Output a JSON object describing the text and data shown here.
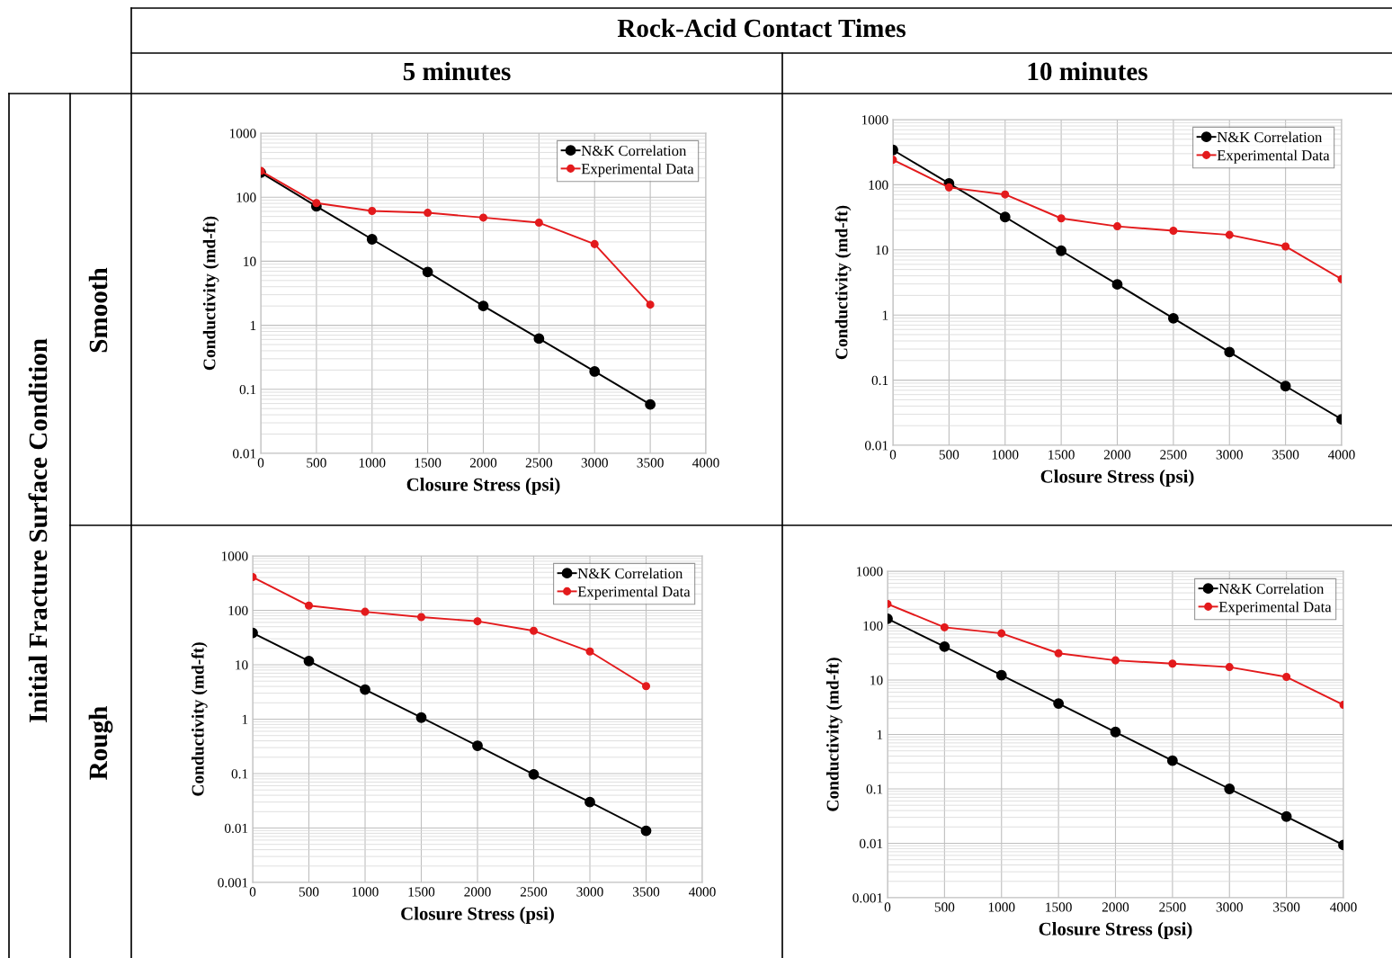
{
  "chart_data": [
    {
      "type": "line",
      "title": "5 minutes",
      "annotations": [
        "Rock-Acid Contact Times",
        "Initial Fracture Surface Condition",
        "Smooth"
      ],
      "xlabel": "Closure Stress (psi)",
      "ylabel": "Conductivity (md-ft)",
      "x": [
        0,
        500,
        1000,
        1500,
        2000,
        2500,
        3000,
        3500
      ],
      "series": [
        {
          "name": "N&K Correlation",
          "color": "#000000",
          "values": [
            242,
            72,
            22,
            6.8,
            2.0,
            0.62,
            0.19,
            0.058
          ]
        },
        {
          "name": "Experimental Data",
          "color": "#e31a1c",
          "values": [
            257,
            81,
            61,
            57,
            48,
            40,
            18.5,
            2.1
          ]
        }
      ],
      "xlim": [
        0,
        4000
      ],
      "ylim": [
        0.01,
        1000
      ],
      "xticks": [
        0,
        500,
        1000,
        1500,
        2000,
        2500,
        3000,
        3500,
        4000
      ],
      "yticks": [
        0.01,
        0.1,
        1,
        10,
        100,
        1000
      ],
      "log": "y",
      "grid": true,
      "legend": "top right",
      "marker": "circle"
    },
    {
      "type": "line",
      "title": "10 minutes",
      "xlabel": "Closure Stress (psi)",
      "ylabel": "Conductivity (md-ft)",
      "x": [
        0,
        500,
        1000,
        1500,
        2000,
        2500,
        3000,
        3500,
        4000
      ],
      "series": [
        {
          "name": "N&K Correlation",
          "color": "#000000",
          "values": [
            342,
            105,
            32,
            9.7,
            2.95,
            0.89,
            0.27,
            0.081,
            0.025
          ]
        },
        {
          "name": "Experimental Data",
          "color": "#e31a1c",
          "values": [
            242,
            91,
            71,
            30.5,
            23,
            19.7,
            17,
            11.3,
            3.55
          ]
        }
      ],
      "xlim": [
        0,
        4000
      ],
      "ylim": [
        0.01,
        1000
      ],
      "xticks": [
        0,
        500,
        1000,
        1500,
        2000,
        2500,
        3000,
        3500,
        4000
      ],
      "yticks": [
        0.01,
        0.1,
        1,
        10,
        100,
        1000
      ],
      "log": "y",
      "grid": true,
      "legend": "top right",
      "marker": "circle"
    },
    {
      "type": "line",
      "annotations": [
        "Rough"
      ],
      "xlabel": "Closure Stress (psi)",
      "ylabel": "Conductivity (md-ft)",
      "x": [
        0,
        500,
        1000,
        1500,
        2000,
        2500,
        3000,
        3500
      ],
      "series": [
        {
          "name": "N&K Correlation",
          "color": "#000000",
          "values": [
            38.5,
            11.7,
            3.5,
            1.07,
            0.325,
            0.097,
            0.03,
            0.0089
          ]
        },
        {
          "name": "Experimental Data",
          "color": "#e31a1c",
          "values": [
            408,
            122,
            94,
            75,
            63,
            42,
            17.5,
            4.05
          ]
        }
      ],
      "xlim": [
        0,
        4000
      ],
      "ylim": [
        0.001,
        1000
      ],
      "xticks": [
        0,
        500,
        1000,
        1500,
        2000,
        2500,
        3000,
        3500,
        4000
      ],
      "yticks": [
        0.001,
        0.01,
        0.1,
        1,
        10,
        100,
        1000
      ],
      "log": "y",
      "grid": true,
      "legend": "top right",
      "marker": "circle"
    },
    {
      "type": "line",
      "xlabel": "Closure Stress (psi)",
      "ylabel": "Conductivity (md-ft)",
      "x": [
        0,
        500,
        1000,
        1500,
        2000,
        2500,
        3000,
        3500,
        4000
      ],
      "series": [
        {
          "name": "N&K Correlation",
          "color": "#000000",
          "values": [
            134,
            41,
            12.3,
            3.7,
            1.11,
            0.33,
            0.1,
            0.031,
            0.0093
          ]
        },
        {
          "name": "Experimental Data",
          "color": "#e31a1c",
          "values": [
            250,
            93,
            72,
            31,
            23,
            20,
            17.3,
            11.4,
            3.5
          ]
        }
      ],
      "xlim": [
        0,
        4000
      ],
      "ylim": [
        0.001,
        1000
      ],
      "xticks": [
        0,
        500,
        1000,
        1500,
        2000,
        2500,
        3000,
        3500,
        4000
      ],
      "yticks": [
        0.001,
        0.01,
        0.1,
        1,
        10,
        100,
        1000
      ],
      "log": "y",
      "grid": true,
      "legend": "top right",
      "marker": "circle"
    }
  ]
}
